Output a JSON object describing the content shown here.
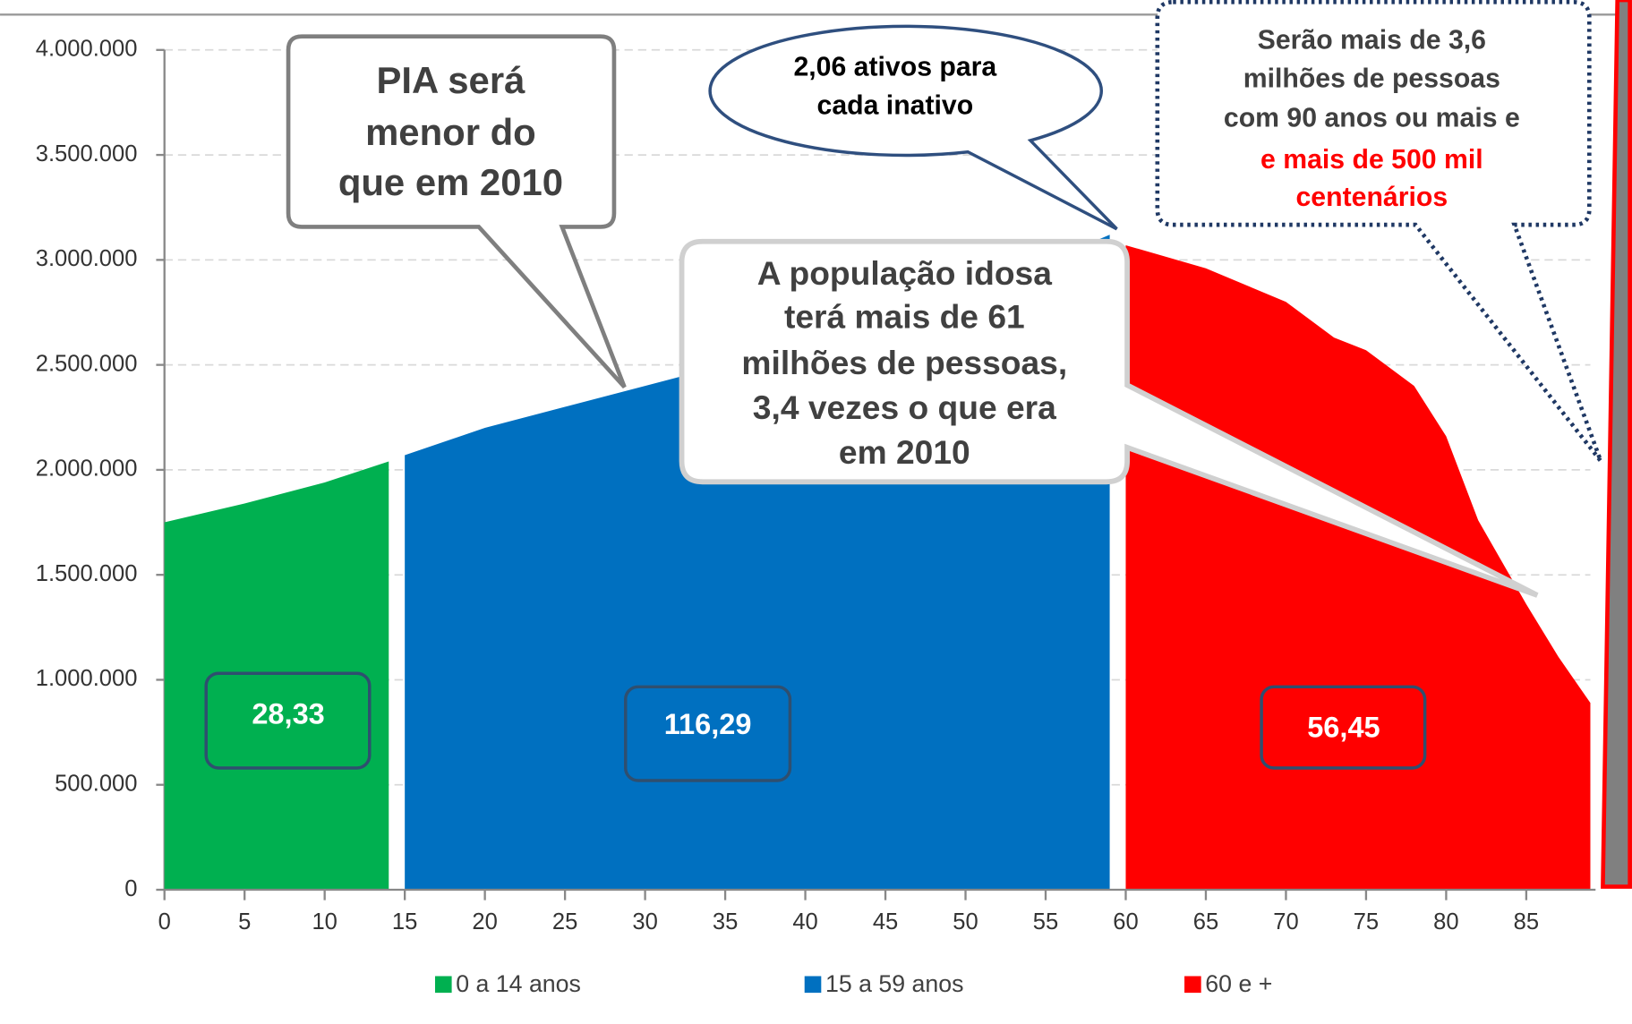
{
  "chart_data": {
    "type": "area",
    "xlim": [
      0,
      89
    ],
    "xticks": [
      0,
      5,
      10,
      15,
      20,
      25,
      30,
      35,
      40,
      45,
      50,
      55,
      60,
      65,
      70,
      75,
      80,
      85
    ],
    "ylim": [
      0,
      4000000
    ],
    "yticks": [
      0,
      {
        "value": 500000,
        "label": "500.000"
      },
      {
        "value": 1000000,
        "label": "1.000.000"
      },
      {
        "value": 1500000,
        "label": "1.500.000"
      },
      {
        "value": 2000000,
        "label": "2.000.000"
      },
      {
        "value": 2500000,
        "label": "2.500.000"
      },
      {
        "value": 3000000,
        "label": "3.000.000"
      },
      {
        "value": 3500000,
        "label": "3.500.000"
      },
      {
        "value": 4000000,
        "label": "4.000.000"
      }
    ],
    "grid": true,
    "legend": "bottom",
    "series": [
      {
        "name": "0 a 14 anos",
        "color": "#00b050",
        "x": [
          0,
          5,
          10,
          14
        ],
        "values": [
          1750000,
          1840000,
          1940000,
          2040000
        ]
      },
      {
        "name": "15 a 59 anos",
        "color": "#0070c0",
        "x": [
          15,
          20,
          25,
          30,
          35,
          40,
          45,
          50,
          55,
          59
        ],
        "values": [
          2070000,
          2200000,
          2300000,
          2400000,
          2500000,
          2600000,
          2720000,
          2850000,
          2990000,
          3120000
        ]
      },
      {
        "name": "60 e +",
        "color": "#ff0000",
        "x": [
          60,
          65,
          70,
          73,
          75,
          78,
          80,
          82,
          85,
          87,
          89
        ],
        "values": [
          3070000,
          2960000,
          2800000,
          2630000,
          2570000,
          2400000,
          2160000,
          1760000,
          1360000,
          1110000,
          890000
        ]
      }
    ],
    "annotations": [
      {
        "lines": [
          "PIA será",
          "menor do",
          "que em 2010"
        ]
      },
      {
        "lines": [
          "2,06 ativos para",
          "cada inativo"
        ]
      },
      {
        "lines": [
          "A população idosa",
          "terá mais de 61",
          "milhões de pessoas,",
          "3,4 vezes o que era",
          "em 2010"
        ]
      },
      {
        "lines": [
          "Serão mais de 3,6",
          "milhões de pessoas",
          "com 90 anos ou mais  e"
        ],
        "highlight_lines": [
          "e  mais de 500 mil",
          "centenários"
        ]
      }
    ],
    "value_boxes": [
      "28,33",
      "116,29",
      "56,45"
    ]
  }
}
